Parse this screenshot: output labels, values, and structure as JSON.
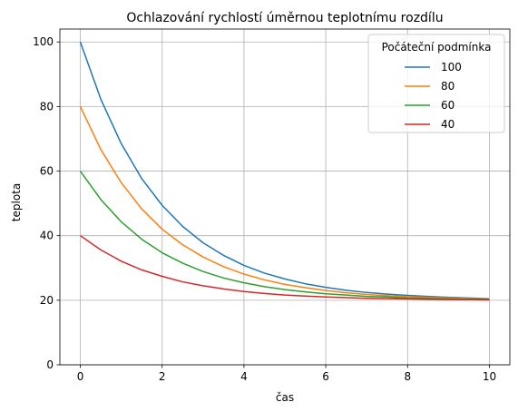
{
  "chart_data": {
    "type": "line",
    "title": "Ochlazování rychlostí úměrnou teplotnímu rozdílu",
    "xlabel": "čas",
    "ylabel": "teplota",
    "xlim": [
      -0.5,
      10.5
    ],
    "ylim": [
      0,
      104
    ],
    "x_ticks": [
      0,
      2,
      4,
      6,
      8,
      10
    ],
    "y_ticks": [
      0,
      20,
      40,
      60,
      80,
      100
    ],
    "x_tick_labels": [
      "0",
      "2",
      "4",
      "6",
      "8",
      "10"
    ],
    "y_tick_labels": [
      "0",
      "20",
      "40",
      "60",
      "80",
      "100"
    ],
    "grid": true,
    "legend": {
      "title": "Počáteční podmínka",
      "placement": "top-right"
    },
    "x": [
      0,
      0.5,
      1,
      1.5,
      2,
      2.5,
      3,
      3.5,
      4,
      4.5,
      5,
      5.5,
      6,
      6.5,
      7,
      7.5,
      8,
      8.5,
      9,
      9.5,
      10
    ],
    "series": [
      {
        "name": "100",
        "color": "#1f77b4",
        "values": [
          100,
          82.3,
          68.5,
          57.7,
          49.4,
          42.9,
          37.8,
          33.9,
          30.8,
          28.4,
          26.6,
          25.1,
          24.0,
          23.1,
          22.4,
          21.9,
          21.5,
          21.2,
          20.9,
          20.7,
          20.5
        ]
      },
      {
        "name": "80",
        "color": "#ff7f0e",
        "values": [
          80,
          66.7,
          56.4,
          48.3,
          42.0,
          37.2,
          33.4,
          30.4,
          28.1,
          26.3,
          24.9,
          23.9,
          23.0,
          22.3,
          21.8,
          21.4,
          21.1,
          20.9,
          20.7,
          20.5,
          20.4
        ]
      },
      {
        "name": "60",
        "color": "#2ca02c",
        "values": [
          60,
          51.2,
          44.3,
          38.9,
          34.7,
          31.5,
          28.9,
          26.9,
          25.4,
          24.2,
          23.3,
          22.6,
          22.0,
          21.6,
          21.2,
          21.0,
          20.7,
          20.6,
          20.4,
          20.3,
          20.3
        ]
      },
      {
        "name": "40",
        "color": "#d62728",
        "values": [
          40,
          35.6,
          32.1,
          29.4,
          27.4,
          25.7,
          24.5,
          23.5,
          22.7,
          22.1,
          21.6,
          21.3,
          21.0,
          20.8,
          20.6,
          20.5,
          20.4,
          20.3,
          20.2,
          20.2,
          20.1
        ]
      }
    ]
  }
}
